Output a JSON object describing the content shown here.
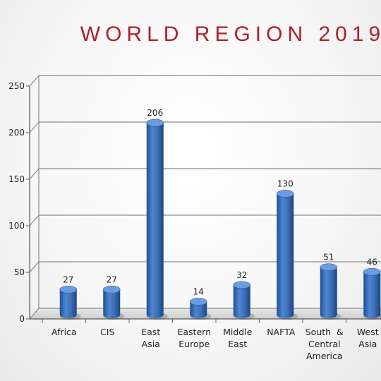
{
  "chart_data": {
    "type": "bar",
    "title": "WORLD REGION 2019",
    "categories": [
      [
        "Africa"
      ],
      [
        "CIS"
      ],
      [
        "East",
        "Asia"
      ],
      [
        "Eastern",
        "Europe"
      ],
      [
        "Middle",
        "East"
      ],
      [
        "NAFTA"
      ],
      [
        "South  &",
        "Central",
        "America"
      ],
      [
        "West",
        "Asia"
      ]
    ],
    "values": [
      27,
      27,
      206,
      14,
      32,
      130,
      51,
      46
    ],
    "data_labels": [
      "27",
      "27",
      "206",
      "14",
      "32",
      "130",
      "51",
      "46"
    ],
    "ylim": [
      0,
      250
    ],
    "yticks": [
      "0",
      "50",
      "100",
      "150",
      "200",
      "250"
    ],
    "grid": true,
    "bar_color": "#3a6cb5",
    "title_color": "#b0202a"
  }
}
